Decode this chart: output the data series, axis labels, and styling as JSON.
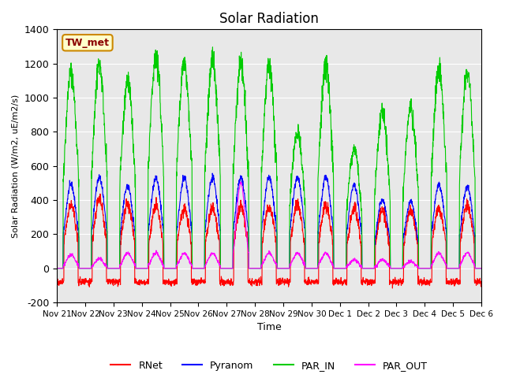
{
  "title": "Solar Radiation",
  "ylabel": "Solar Radiation (W/m2, uE/m2/s)",
  "xlabel": "Time",
  "ylim": [
    -200,
    1400
  ],
  "yticks": [
    -200,
    0,
    200,
    400,
    600,
    800,
    1000,
    1200,
    1400
  ],
  "station_label": "TW_met",
  "background_color": "#e8e8e8",
  "colors": {
    "RNet": "#ff0000",
    "Pyranom": "#0000ff",
    "PAR_IN": "#00cc00",
    "PAR_OUT": "#ff00ff"
  },
  "x_tick_labels": [
    "Nov 21",
    "Nov 22",
    "Nov 23",
    "Nov 24",
    "Nov 25",
    "Nov 26",
    "Nov 27",
    "Nov 28",
    "Nov 29",
    "Nov 30",
    "Dec 1",
    "Dec 2",
    "Dec 3",
    "Dec 4",
    "Dec 5",
    "Dec 6"
  ],
  "n_days": 15,
  "pts_per_day": 144
}
